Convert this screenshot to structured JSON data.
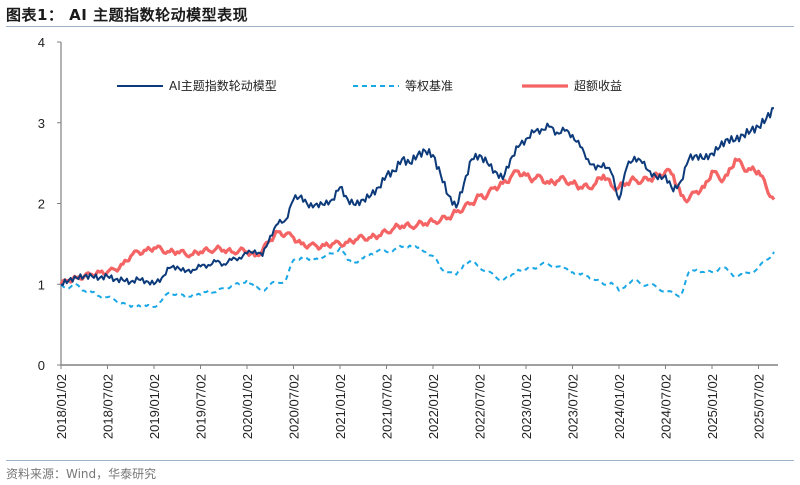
{
  "header": {
    "title": "图表1：  AI 主题指数轮动模型表现"
  },
  "footer": {
    "source": "资料来源：Wind，华泰研究"
  },
  "colors": {
    "model": "#0c3a7a",
    "benchmark": "#1aa7e6",
    "excess": "#f56464",
    "axis": "#808080",
    "rule": "#9fb3c8"
  },
  "chart_data": {
    "type": "line",
    "title": "AI 主题指数轮动模型表现",
    "xlabel": "",
    "ylabel": "",
    "ylim": [
      0,
      4
    ],
    "yticks": [
      0,
      1,
      2,
      3,
      4
    ],
    "grid": false,
    "legend_position": "top-inside",
    "x_tick_labels": [
      "2018/01/02",
      "2018/07/02",
      "2019/01/02",
      "2019/07/02",
      "2020/01/02",
      "2020/07/02",
      "2021/01/02",
      "2021/07/02",
      "2022/01/02",
      "2022/07/02",
      "2023/01/02",
      "2023/07/02",
      "2024/01/02",
      "2024/07/02",
      "2025/01/02",
      "2025/07/02"
    ],
    "x": [
      "2018-01",
      "2018-02",
      "2018-03",
      "2018-04",
      "2018-05",
      "2018-06",
      "2018-07",
      "2018-08",
      "2018-09",
      "2018-10",
      "2018-11",
      "2018-12",
      "2019-01",
      "2019-02",
      "2019-03",
      "2019-04",
      "2019-05",
      "2019-06",
      "2019-07",
      "2019-08",
      "2019-09",
      "2019-10",
      "2019-11",
      "2019-12",
      "2020-01",
      "2020-02",
      "2020-03",
      "2020-04",
      "2020-05",
      "2020-06",
      "2020-07",
      "2020-08",
      "2020-09",
      "2020-10",
      "2020-11",
      "2020-12",
      "2021-01",
      "2021-02",
      "2021-03",
      "2021-04",
      "2021-05",
      "2021-06",
      "2021-07",
      "2021-08",
      "2021-09",
      "2021-10",
      "2021-11",
      "2021-12",
      "2022-01",
      "2022-02",
      "2022-03",
      "2022-04",
      "2022-05",
      "2022-06",
      "2022-07",
      "2022-08",
      "2022-09",
      "2022-10",
      "2022-11",
      "2022-12",
      "2023-01",
      "2023-02",
      "2023-03",
      "2023-04",
      "2023-05",
      "2023-06",
      "2023-07",
      "2023-08",
      "2023-09",
      "2023-10",
      "2023-11",
      "2023-12",
      "2024-01",
      "2024-02",
      "2024-03",
      "2024-04",
      "2024-05",
      "2024-06",
      "2024-07",
      "2024-08",
      "2024-09",
      "2024-10",
      "2024-11",
      "2024-12",
      "2025-01",
      "2025-02",
      "2025-03",
      "2025-04",
      "2025-05",
      "2025-06",
      "2025-07",
      "2025-08",
      "2025-09"
    ],
    "series": [
      {
        "name": "AI主题指数轮动模型",
        "style": "solid",
        "values": [
          1.0,
          1.05,
          1.08,
          1.1,
          1.1,
          1.08,
          1.1,
          1.06,
          1.05,
          1.03,
          1.06,
          1.04,
          1.0,
          1.08,
          1.2,
          1.22,
          1.15,
          1.18,
          1.22,
          1.24,
          1.28,
          1.25,
          1.3,
          1.33,
          1.38,
          1.42,
          1.35,
          1.6,
          1.75,
          1.8,
          2.05,
          2.1,
          1.95,
          2.0,
          1.98,
          2.05,
          2.2,
          2.05,
          1.98,
          2.05,
          2.1,
          2.2,
          2.35,
          2.4,
          2.55,
          2.5,
          2.6,
          2.65,
          2.6,
          2.35,
          2.1,
          1.95,
          2.25,
          2.55,
          2.6,
          2.5,
          2.4,
          2.3,
          2.55,
          2.7,
          2.8,
          2.88,
          2.92,
          2.95,
          2.88,
          2.9,
          2.85,
          2.7,
          2.55,
          2.42,
          2.5,
          2.38,
          2.05,
          2.45,
          2.58,
          2.5,
          2.4,
          2.3,
          2.35,
          2.15,
          2.28,
          2.55,
          2.6,
          2.55,
          2.62,
          2.7,
          2.8,
          2.78,
          2.85,
          2.9,
          2.95,
          3.05,
          3.18
        ]
      },
      {
        "name": "等权基准",
        "style": "dashed",
        "values": [
          1.0,
          0.95,
          1.0,
          0.92,
          0.9,
          0.85,
          0.84,
          0.8,
          0.77,
          0.72,
          0.74,
          0.73,
          0.72,
          0.8,
          0.9,
          0.88,
          0.84,
          0.87,
          0.87,
          0.92,
          0.9,
          0.95,
          0.98,
          1.0,
          1.05,
          0.96,
          0.92,
          1.0,
          1.02,
          1.05,
          1.3,
          1.33,
          1.3,
          1.32,
          1.34,
          1.38,
          1.45,
          1.3,
          1.27,
          1.32,
          1.38,
          1.42,
          1.4,
          1.43,
          1.46,
          1.48,
          1.45,
          1.4,
          1.35,
          1.2,
          1.15,
          1.12,
          1.25,
          1.28,
          1.22,
          1.15,
          1.1,
          1.05,
          1.1,
          1.18,
          1.18,
          1.2,
          1.25,
          1.24,
          1.22,
          1.2,
          1.15,
          1.12,
          1.1,
          1.05,
          1.0,
          1.02,
          0.92,
          1.0,
          1.05,
          1.0,
          1.0,
          0.95,
          0.92,
          0.88,
          0.86,
          1.15,
          1.18,
          1.15,
          1.15,
          1.2,
          1.18,
          1.1,
          1.12,
          1.15,
          1.2,
          1.3,
          1.4
        ]
      },
      {
        "name": "超额收益",
        "style": "solid-thick",
        "values": [
          1.0,
          1.05,
          1.08,
          1.1,
          1.12,
          1.15,
          1.15,
          1.18,
          1.25,
          1.35,
          1.4,
          1.42,
          1.45,
          1.43,
          1.4,
          1.4,
          1.38,
          1.37,
          1.4,
          1.42,
          1.44,
          1.42,
          1.4,
          1.42,
          1.4,
          1.35,
          1.42,
          1.55,
          1.65,
          1.62,
          1.58,
          1.5,
          1.48,
          1.47,
          1.48,
          1.5,
          1.5,
          1.52,
          1.55,
          1.58,
          1.58,
          1.6,
          1.65,
          1.7,
          1.72,
          1.72,
          1.74,
          1.75,
          1.78,
          1.8,
          1.82,
          1.9,
          1.95,
          2.0,
          2.1,
          2.1,
          2.2,
          2.25,
          2.32,
          2.4,
          2.35,
          2.3,
          2.32,
          2.25,
          2.28,
          2.3,
          2.25,
          2.2,
          2.2,
          2.25,
          2.35,
          2.22,
          2.2,
          2.25,
          2.3,
          2.28,
          2.3,
          2.35,
          2.4,
          2.35,
          2.1,
          2.05,
          2.15,
          2.2,
          2.4,
          2.3,
          2.35,
          2.55,
          2.45,
          2.42,
          2.4,
          2.2,
          2.05
        ]
      }
    ]
  }
}
